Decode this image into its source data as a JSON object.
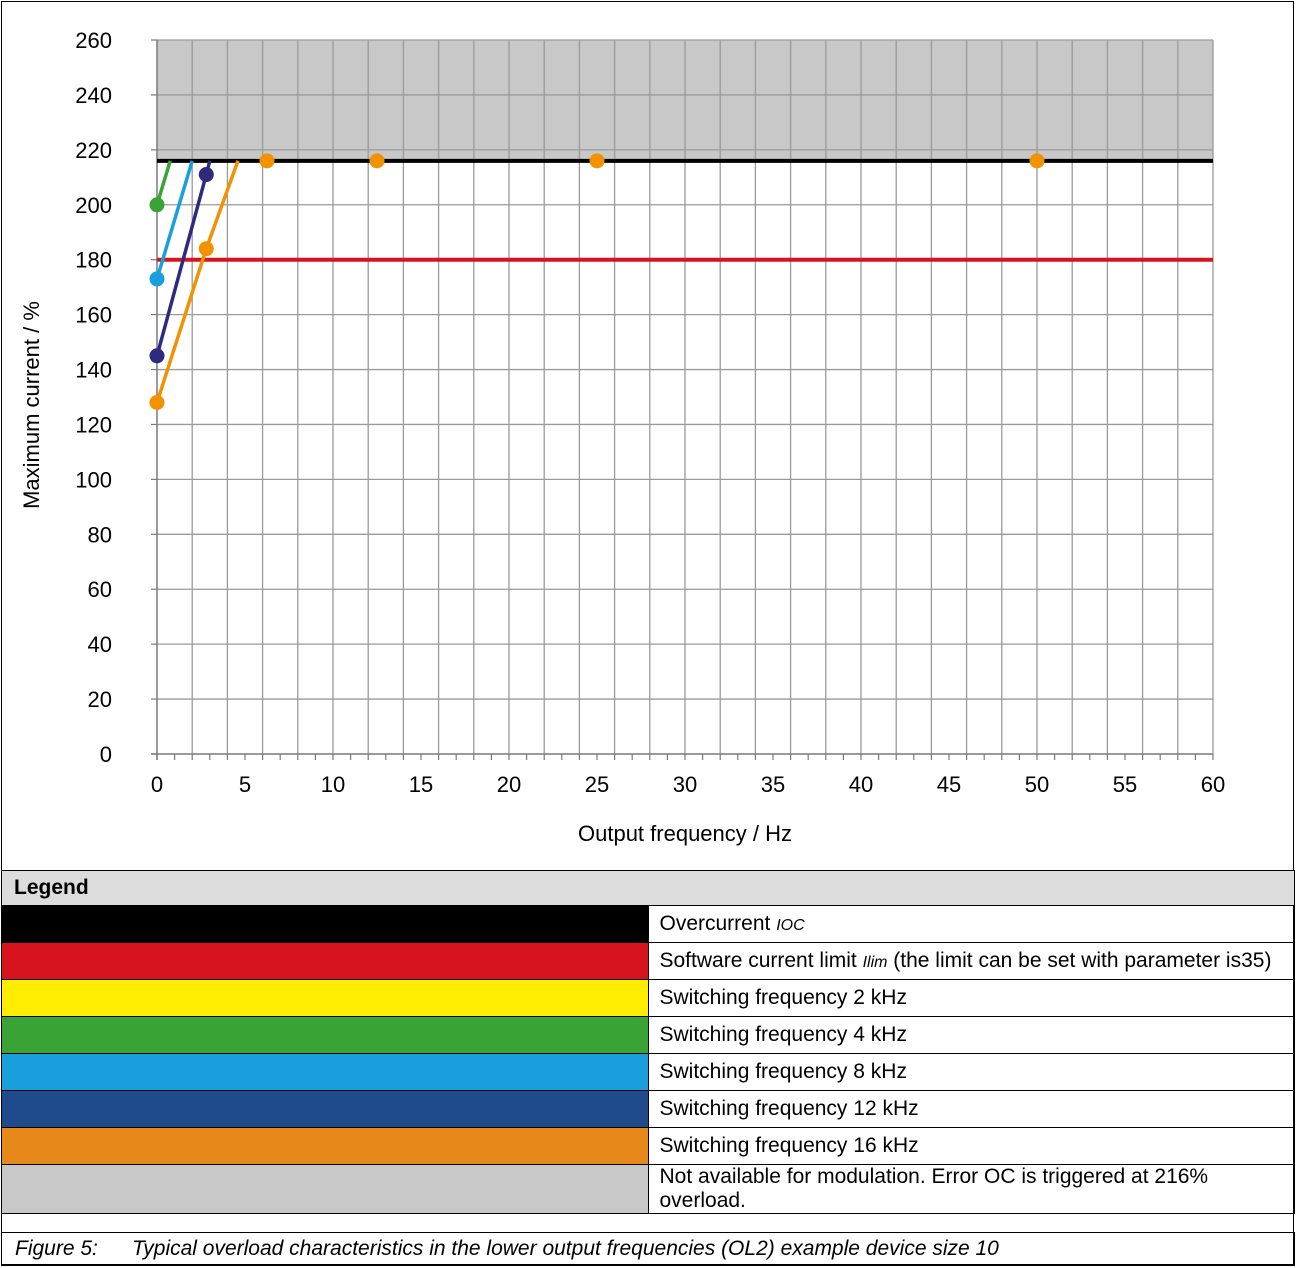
{
  "chart_data": {
    "type": "line",
    "xlabel": "Output frequency / Hz",
    "ylabel": "Maximum current / %",
    "xlim": [
      0,
      60
    ],
    "ylim": [
      0,
      260
    ],
    "x_ticks": [
      0,
      5,
      10,
      15,
      20,
      25,
      30,
      35,
      40,
      45,
      50,
      55,
      60
    ],
    "y_ticks": [
      0,
      20,
      40,
      60,
      80,
      100,
      120,
      140,
      160,
      180,
      200,
      220,
      240,
      260
    ],
    "grid": true,
    "shaded_region": {
      "y_from": 216,
      "y_to": 260,
      "color": "#c8c8c8"
    },
    "horizontal_lines": [
      {
        "y": 216,
        "color": "#000000"
      },
      {
        "y": 180,
        "color": "#d7141d"
      }
    ],
    "series": [
      {
        "color": "#3aa335",
        "points": [
          [
            0,
            200
          ],
          [
            0.75,
            216
          ]
        ]
      },
      {
        "color": "#19a0dc",
        "points": [
          [
            0,
            173
          ],
          [
            2.0,
            216
          ]
        ]
      },
      {
        "color": "#2e2a7d",
        "points": [
          [
            0,
            145
          ],
          [
            2.8,
            211
          ],
          [
            3.0,
            216
          ]
        ]
      },
      {
        "color": "#f39200",
        "points": [
          [
            0,
            128
          ],
          [
            2.8,
            184
          ],
          [
            4.6,
            216
          ]
        ]
      }
    ],
    "markers": [
      {
        "x": 0,
        "y": 200,
        "color": "#3aa335"
      },
      {
        "x": 0,
        "y": 173,
        "color": "#19a0dc"
      },
      {
        "x": 0,
        "y": 145,
        "color": "#2e2a7d"
      },
      {
        "x": 2.8,
        "y": 211,
        "color": "#2e2a7d"
      },
      {
        "x": 0,
        "y": 128,
        "color": "#f39200"
      },
      {
        "x": 2.8,
        "y": 184,
        "color": "#f39200"
      },
      {
        "x": 6.25,
        "y": 216,
        "color": "#f39200"
      },
      {
        "x": 12.5,
        "y": 216,
        "color": "#f39200"
      },
      {
        "x": 25,
        "y": 216,
        "color": "#f39200"
      },
      {
        "x": 50,
        "y": 216,
        "color": "#f39200"
      }
    ]
  },
  "legend": {
    "title": "Legend",
    "items": [
      {
        "color": "#000000",
        "text": "Overcurrent ",
        "sub": "IOC",
        "rest": ""
      },
      {
        "color": "#d7141d",
        "text": "Software current limit ",
        "sub": "Ilim",
        "rest": " (the limit can be set with parameter is35)"
      },
      {
        "color": "#ffed00",
        "text": "Switching frequency 2 kHz"
      },
      {
        "color": "#3aa335",
        "text": "Switching frequency 4 kHz"
      },
      {
        "color": "#19a0dc",
        "text": "Switching frequency 8 kHz"
      },
      {
        "color": "#1f4a8c",
        "text": "Switching frequency 12 kHz"
      },
      {
        "color": "#e6891a",
        "text": "Switching frequency 16 kHz"
      },
      {
        "color": "#c8c8c8",
        "text": "Not available for modulation. Error OC is triggered at 216% overload."
      }
    ]
  },
  "caption": {
    "label": "Figure 5:",
    "text": "Typical overload characteristics in the lower output frequencies (OL2) example device size 10"
  }
}
